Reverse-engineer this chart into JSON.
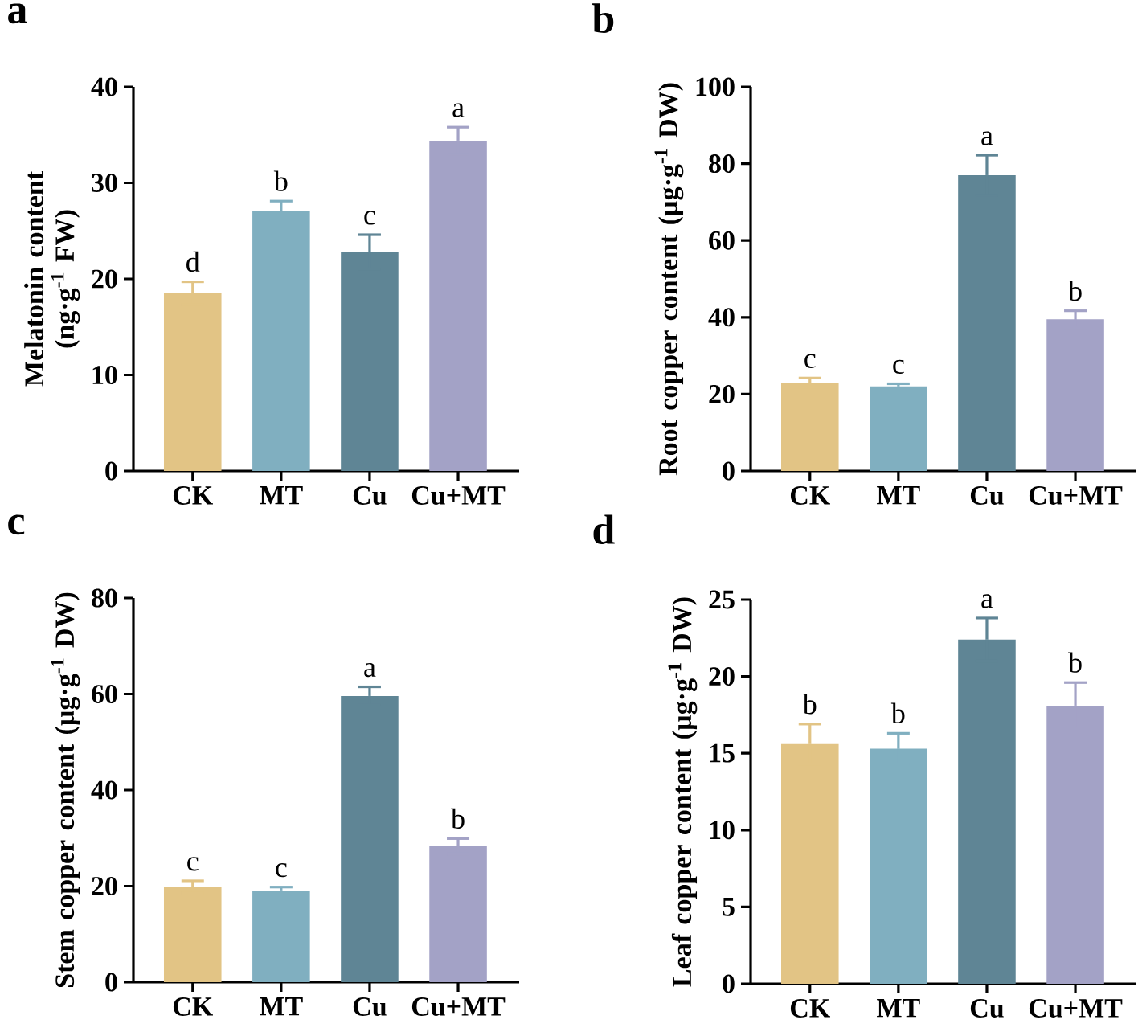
{
  "chart_data": [
    {
      "type": "bar",
      "title": "a",
      "ylabel": "Melatonin content (ng·g$^{-1}$ FW)",
      "categories": [
        "CK",
        "MT",
        "Cu",
        "Cu+MT"
      ],
      "values": [
        18.5,
        27.1,
        22.8,
        34.4
      ],
      "errors": [
        1.2,
        1.0,
        1.8,
        1.4
      ],
      "colors": [
        "#e2c485",
        "#80afc0",
        "#5f8595",
        "#a3a2c6"
      ],
      "ylim": [
        0,
        40
      ],
      "yticks": [
        0,
        10,
        20,
        30,
        40
      ],
      "annotations": [
        {
          "text": "d",
          "x": "CK",
          "y": 19.7
        },
        {
          "text": "b",
          "x": "MT",
          "y": 28.1
        },
        {
          "text": "c",
          "x": "Cu",
          "y": 24.6
        },
        {
          "text": "a",
          "x": "Cu+MT",
          "y": 35.8
        }
      ]
    },
    {
      "type": "bar",
      "title": "b",
      "ylabel": "Root copper content (µg·g$^{-1}$ DW)",
      "categories": [
        "CK",
        "MT",
        "Cu",
        "Cu+MT"
      ],
      "values": [
        23,
        22,
        77,
        39.5
      ],
      "errors": [
        1.2,
        0.7,
        5.2,
        2.2
      ],
      "colors": [
        "#e2c485",
        "#80afc0",
        "#5f8595",
        "#a3a2c6"
      ],
      "ylim": [
        0,
        100
      ],
      "yticks": [
        0,
        20,
        40,
        60,
        80,
        100
      ],
      "annotations": [
        {
          "text": "c",
          "x": "CK",
          "y": 24.2
        },
        {
          "text": "c",
          "x": "MT",
          "y": 22.7
        },
        {
          "text": "a",
          "x": "Cu",
          "y": 82.2
        },
        {
          "text": "b",
          "x": "Cu+MT",
          "y": 41.7
        }
      ]
    },
    {
      "type": "bar",
      "title": "c",
      "ylabel": "Stem copper content (µg·g$^{-1}$ DW)",
      "categories": [
        "CK",
        "MT",
        "Cu",
        "Cu+MT"
      ],
      "values": [
        19.8,
        19.1,
        59.6,
        28.3
      ],
      "errors": [
        1.3,
        0.7,
        1.9,
        1.6
      ],
      "colors": [
        "#e2c485",
        "#80afc0",
        "#5f8595",
        "#a3a2c6"
      ],
      "ylim": [
        0,
        80
      ],
      "yticks": [
        0,
        20,
        40,
        60,
        80
      ],
      "annotations": [
        {
          "text": "c",
          "x": "CK",
          "y": 21.1
        },
        {
          "text": "c",
          "x": "MT",
          "y": 19.8
        },
        {
          "text": "a",
          "x": "Cu",
          "y": 61.5
        },
        {
          "text": "b",
          "x": "Cu+MT",
          "y": 29.9
        }
      ]
    },
    {
      "type": "bar",
      "title": "d",
      "ylabel": "Leaf copper content (µg·g$^{-1}$ DW)",
      "categories": [
        "CK",
        "MT",
        "Cu",
        "Cu+MT"
      ],
      "values": [
        15.6,
        15.3,
        22.4,
        18.1
      ],
      "errors": [
        1.3,
        1.0,
        1.4,
        1.5
      ],
      "colors": [
        "#e2c485",
        "#80afc0",
        "#5f8595",
        "#a3a2c6"
      ],
      "ylim": [
        0,
        25
      ],
      "yticks": [
        0,
        5,
        10,
        15,
        20,
        25
      ],
      "annotations": [
        {
          "text": "b",
          "x": "CK",
          "y": 16.9
        },
        {
          "text": "b",
          "x": "MT",
          "y": 16.3
        },
        {
          "text": "a",
          "x": "Cu",
          "y": 23.8
        },
        {
          "text": "b",
          "x": "Cu+MT",
          "y": 19.6
        }
      ]
    }
  ]
}
